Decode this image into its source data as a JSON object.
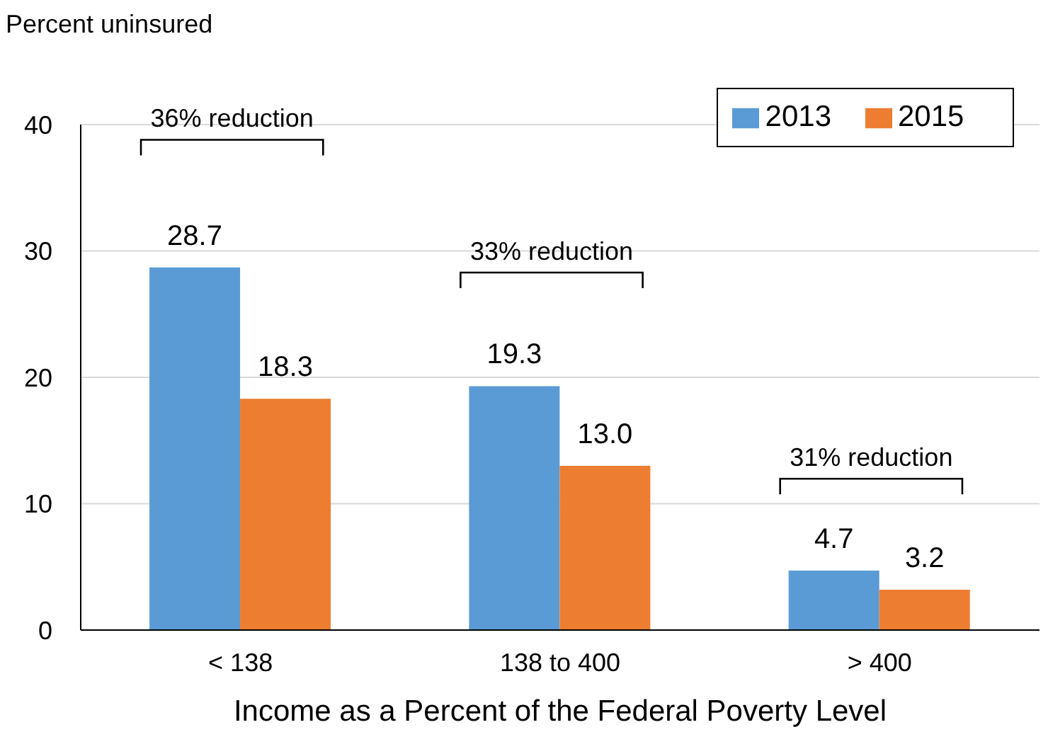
{
  "chart_data": {
    "type": "bar",
    "ylabel": "Percent uninsured",
    "xlabel": "Income as a Percent of the Federal Poverty Level",
    "categories": [
      "< 138",
      "138 to 400",
      "> 400"
    ],
    "series": [
      {
        "name": "2013",
        "color": "#5b9bd5",
        "values": [
          28.7,
          19.3,
          4.7
        ],
        "value_labels": [
          "28.7",
          "19.3",
          "4.7"
        ]
      },
      {
        "name": "2015",
        "color": "#ed7d31",
        "values": [
          18.3,
          13.0,
          3.2
        ],
        "value_labels": [
          "18.3",
          "13.0",
          "3.2"
        ]
      }
    ],
    "ylim": [
      0,
      40
    ],
    "yticks": [
      0,
      10,
      20,
      30,
      40
    ],
    "grid": "y",
    "legend": "top right",
    "annotations": [
      "36% reduction",
      "33% reduction",
      "31% reduction"
    ]
  }
}
